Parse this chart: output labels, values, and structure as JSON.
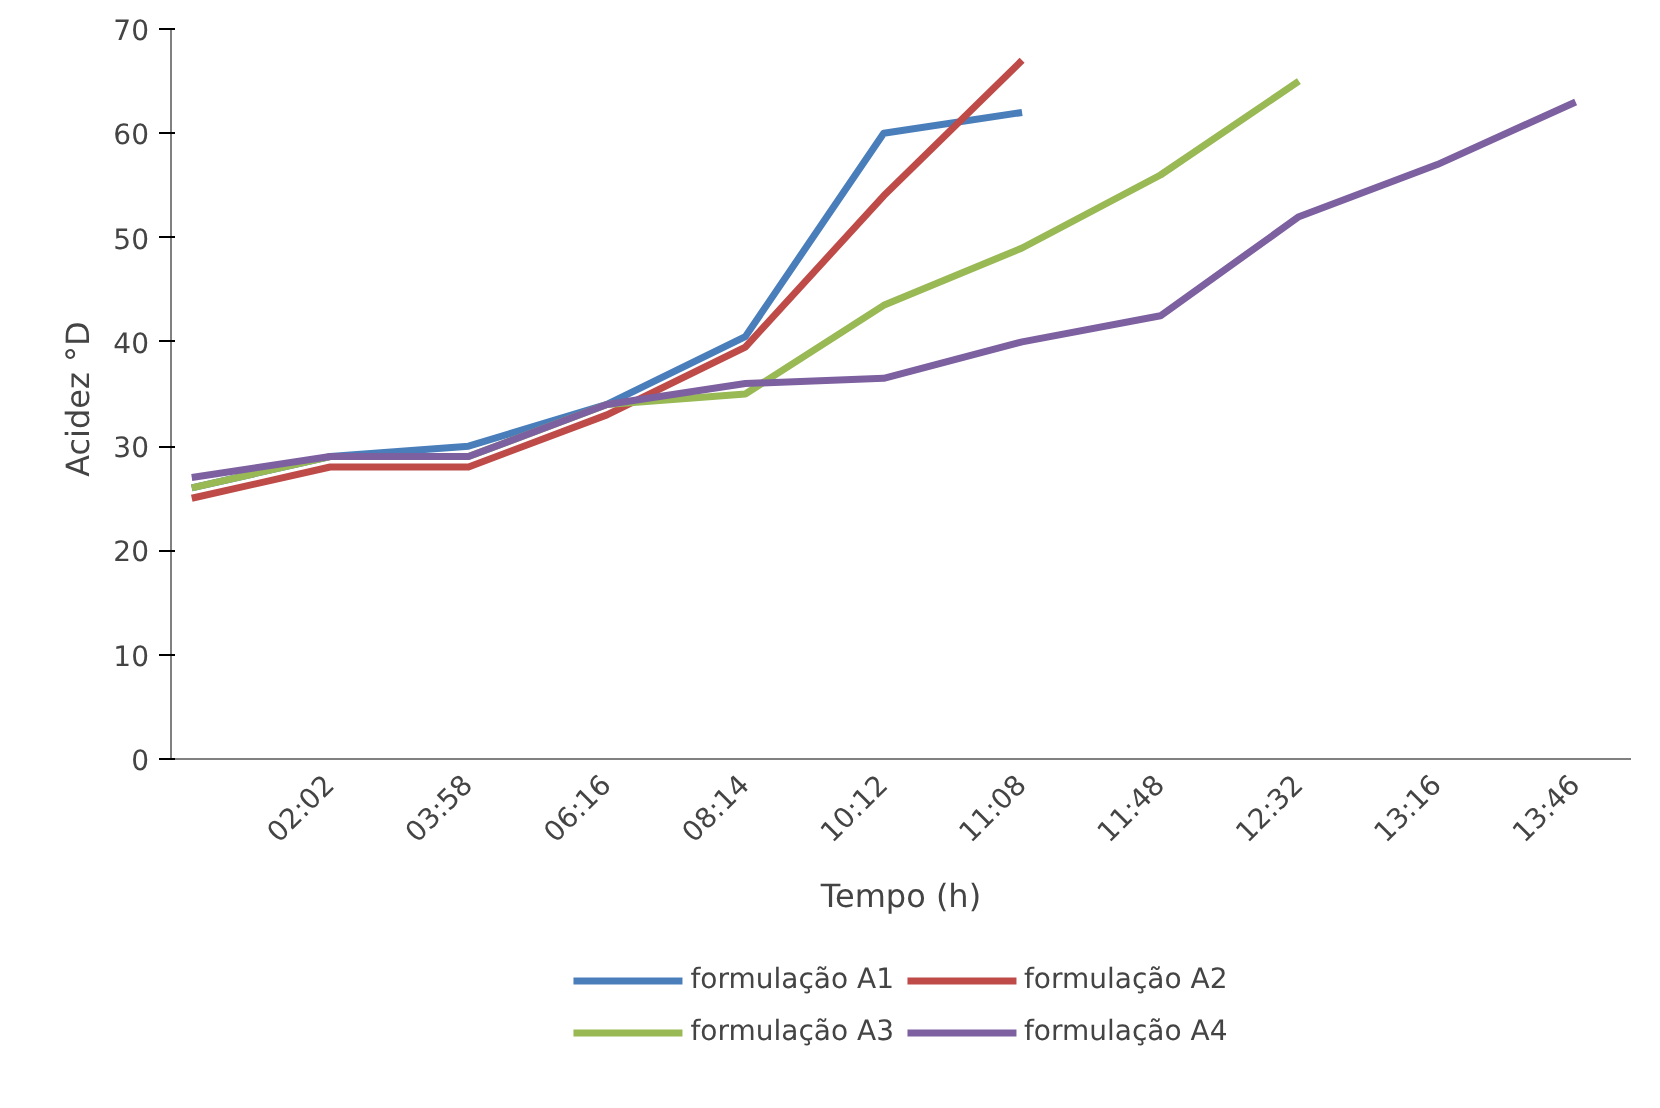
{
  "chart_data": {
    "type": "line",
    "xlabel": "Tempo (h)",
    "ylabel": "Acidez  °D",
    "categories": [
      null,
      "02:02",
      "03:58",
      "06:16",
      "08:14",
      "10:12",
      "11:08",
      "11:48",
      "12:32",
      "13:16",
      "13:46"
    ],
    "series": [
      {
        "name": "formulação A1",
        "color": "#4a7ebb",
        "values": [
          26,
          29,
          30,
          34,
          40.5,
          60,
          62,
          null,
          null,
          null,
          null
        ]
      },
      {
        "name": "formulação A2",
        "color": "#be4b48",
        "values": [
          25,
          28,
          28,
          33,
          39.5,
          54,
          67,
          null,
          null,
          null,
          null
        ]
      },
      {
        "name": "formulação A3",
        "color": "#98b954",
        "values": [
          26,
          29,
          29,
          34,
          35,
          43.5,
          49,
          56,
          65,
          null,
          null
        ]
      },
      {
        "name": "formulação A4",
        "color": "#7d60a0",
        "values": [
          27,
          29,
          29,
          34,
          36,
          36.5,
          40,
          42.5,
          52,
          57,
          63
        ]
      }
    ],
    "ylim": [
      0,
      70
    ],
    "yticks": [
      0,
      10,
      20,
      30,
      40,
      50,
      60,
      70
    ],
    "grid": false,
    "legend": "bottom",
    "marker": "none",
    "line_style": "solid"
  }
}
